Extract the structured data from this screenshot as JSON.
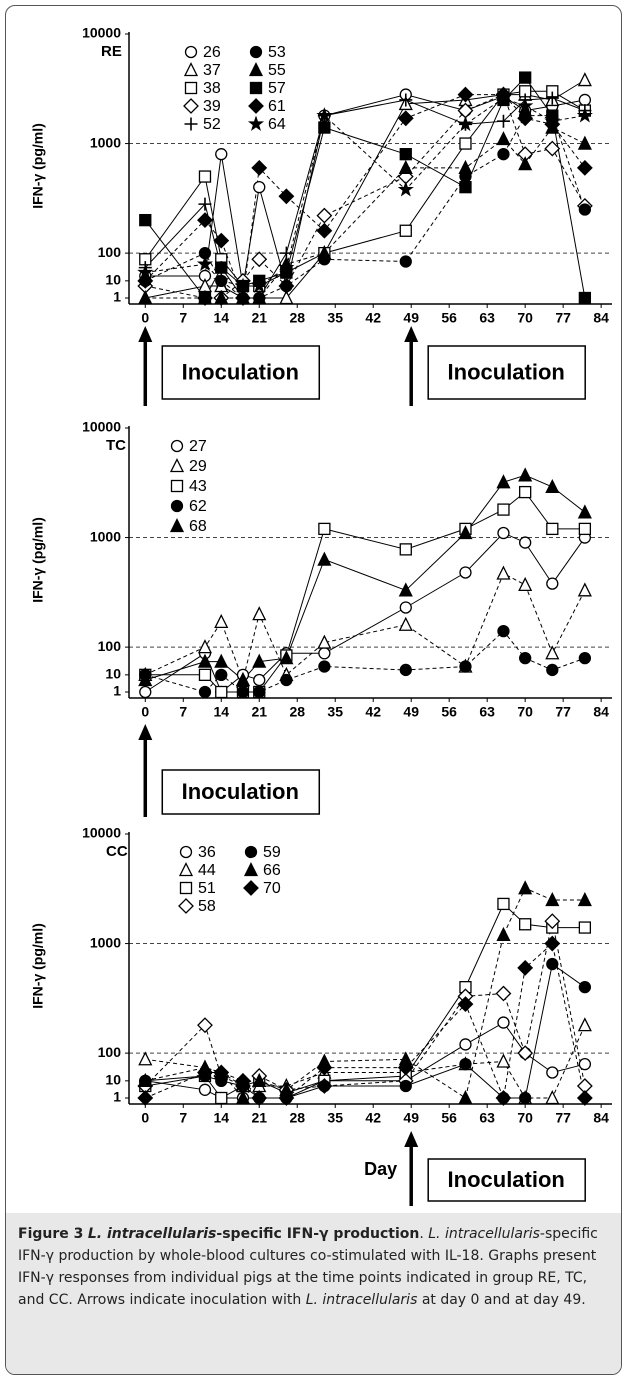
{
  "chart_data": [
    {
      "type": "line",
      "label": "RE",
      "ylabel": "IFN-γ (pg/ml)",
      "log_scale": true,
      "color": "#000000",
      "x": [
        0,
        11,
        14,
        18,
        21,
        26,
        33,
        48,
        59,
        66,
        70,
        75,
        81
      ],
      "xlim": [
        -3,
        86
      ],
      "xticks": [
        0,
        7,
        14,
        21,
        28,
        35,
        42,
        49,
        56,
        63,
        70,
        77,
        84
      ],
      "ylim": [
        1,
        10000
      ],
      "yticks": [
        1,
        10,
        100,
        1000,
        10000
      ],
      "hlines": [
        100,
        1000
      ],
      "legend_columns": 2,
      "series": [
        {
          "name": "26",
          "marker": "circle",
          "filled": false,
          "dash": false,
          "values": [
            15,
            15,
            800,
            5,
            400,
            5,
            1800,
            2800,
            2000,
            2700,
            2000,
            2200,
            2500
          ]
        },
        {
          "name": "37",
          "marker": "triangle",
          "filled": false,
          "dash": false,
          "values": [
            1,
            5,
            5,
            1,
            1,
            1,
            100,
            2300,
            2500,
            2800,
            2800,
            2500,
            3800
          ]
        },
        {
          "name": "38",
          "marker": "square",
          "filled": false,
          "dash": false,
          "values": [
            60,
            500,
            60,
            5,
            5,
            20,
            100,
            160,
            1000,
            2800,
            3000,
            3000,
            2000
          ]
        },
        {
          "name": "39",
          "marker": "diamond",
          "filled": false,
          "dash": true,
          "values": [
            5,
            1,
            1,
            10,
            60,
            5,
            220,
            500,
            2000,
            2800,
            800,
            900,
            270
          ]
        },
        {
          "name": "52",
          "marker": "plus",
          "filled": false,
          "dash": false,
          "values": [
            30,
            280,
            30,
            1,
            1,
            100,
            1800,
            2500,
            1500,
            1600,
            2500,
            2600,
            2000
          ]
        },
        {
          "name": "53",
          "marker": "circle",
          "filled": true,
          "dash": true,
          "values": [
            10,
            100,
            10,
            1,
            1,
            5,
            60,
            50,
            500,
            800,
            1800,
            1800,
            250
          ]
        },
        {
          "name": "55",
          "marker": "triangle",
          "filled": true,
          "dash": true,
          "values": [
            1,
            1,
            1,
            1,
            1,
            40,
            100,
            600,
            600,
            1100,
            650,
            1400,
            1000
          ]
        },
        {
          "name": "57",
          "marker": "square",
          "filled": true,
          "dash": false,
          "values": [
            200,
            1,
            30,
            5,
            10,
            20,
            1400,
            800,
            400,
            2500,
            4000,
            1800,
            1
          ]
        },
        {
          "name": "61",
          "marker": "diamond",
          "filled": true,
          "dash": true,
          "values": [
            10,
            200,
            130,
            1,
            600,
            330,
            160,
            1700,
            2800,
            2800,
            1700,
            1500,
            600
          ]
        },
        {
          "name": "64",
          "marker": "star",
          "filled": true,
          "dash": true,
          "values": [
            20,
            40,
            10,
            5,
            5,
            30,
            1800,
            380,
            1500,
            2600,
            2200,
            1600,
            1800
          ]
        }
      ],
      "annotations": [
        {
          "text": "Inoculation",
          "x": 0
        },
        {
          "text": "Inoculation",
          "x": 49
        }
      ]
    },
    {
      "type": "line",
      "label": "TC",
      "ylabel": "IFN-γ (pg/ml)",
      "log_scale": true,
      "color": "#000000",
      "x": [
        0,
        11,
        14,
        18,
        21,
        26,
        33,
        48,
        59,
        66,
        70,
        75,
        81
      ],
      "xlim": [
        -3,
        86
      ],
      "xticks": [
        0,
        7,
        14,
        21,
        28,
        35,
        42,
        49,
        56,
        63,
        70,
        77,
        84
      ],
      "ylim": [
        1,
        10000
      ],
      "yticks": [
        1,
        10,
        100,
        1000,
        10000
      ],
      "hlines": [
        100,
        1000
      ],
      "legend_columns": 1,
      "series": [
        {
          "name": "27",
          "marker": "circle",
          "filled": false,
          "dash": false,
          "values": [
            1,
            60,
            1,
            10,
            5,
            60,
            60,
            230,
            480,
            1100,
            900,
            380,
            1000
          ]
        },
        {
          "name": "29",
          "marker": "triangle",
          "filled": false,
          "dash": true,
          "values": [
            10,
            100,
            170,
            5,
            200,
            10,
            110,
            160,
            20,
            470,
            370,
            60,
            330
          ]
        },
        {
          "name": "43",
          "marker": "square",
          "filled": false,
          "dash": false,
          "values": [
            10,
            10,
            1,
            1,
            1,
            50,
            1200,
            780,
            1200,
            1800,
            2600,
            1200,
            1200
          ]
        },
        {
          "name": "62",
          "marker": "circle",
          "filled": true,
          "dash": true,
          "values": [
            10,
            1,
            10,
            1,
            1,
            5,
            20,
            15,
            20,
            140,
            40,
            15,
            40
          ]
        },
        {
          "name": "68",
          "marker": "triangle",
          "filled": true,
          "dash": false,
          "values": [
            5,
            30,
            30,
            5,
            30,
            40,
            630,
            330,
            1100,
            3200,
            3700,
            2900,
            1700
          ]
        }
      ],
      "annotations": [
        {
          "text": "Inoculation",
          "x": 0
        }
      ]
    },
    {
      "type": "line",
      "label": "CC",
      "ylabel": "IFN-γ (pg/ml)",
      "xlabel": "Day",
      "log_scale": true,
      "color": "#000000",
      "x": [
        0,
        11,
        14,
        18,
        21,
        26,
        33,
        48,
        59,
        66,
        70,
        75,
        81
      ],
      "xlim": [
        -3,
        86
      ],
      "xticks": [
        0,
        7,
        14,
        21,
        28,
        35,
        42,
        49,
        56,
        63,
        70,
        77,
        84
      ],
      "ylim": [
        1,
        10000
      ],
      "yticks": [
        1,
        10,
        100,
        1000,
        10000
      ],
      "hlines": [
        100,
        1000
      ],
      "legend_columns": 2,
      "series": [
        {
          "name": "36",
          "marker": "circle",
          "filled": false,
          "dash": false,
          "values": [
            10,
            3,
            1,
            1,
            1,
            1,
            10,
            10,
            120,
            190,
            100,
            20,
            40
          ]
        },
        {
          "name": "44",
          "marker": "triangle",
          "filled": false,
          "dash": true,
          "values": [
            60,
            30,
            20,
            5,
            5,
            5,
            20,
            20,
            40,
            50,
            1,
            1,
            180
          ]
        },
        {
          "name": "51",
          "marker": "square",
          "filled": false,
          "dash": false,
          "values": [
            5,
            15,
            1,
            5,
            10,
            2,
            10,
            15,
            400,
            2300,
            1500,
            1400,
            1400
          ]
        },
        {
          "name": "58",
          "marker": "diamond",
          "filled": false,
          "dash": true,
          "values": [
            5,
            180,
            15,
            5,
            15,
            3,
            5,
            10,
            330,
            350,
            100,
            1600,
            5
          ]
        },
        {
          "name": "59",
          "marker": "circle",
          "filled": true,
          "dash": false,
          "values": [
            10,
            15,
            10,
            5,
            1,
            1,
            5,
            5,
            40,
            1,
            1,
            650,
            400
          ]
        },
        {
          "name": "66",
          "marker": "triangle",
          "filled": true,
          "dash": true,
          "values": [
            10,
            30,
            20,
            1,
            10,
            3,
            50,
            60,
            1,
            1200,
            3200,
            2500,
            2500
          ]
        },
        {
          "name": "70",
          "marker": "diamond",
          "filled": true,
          "dash": true,
          "values": [
            1,
            20,
            20,
            10,
            1,
            1,
            30,
            30,
            280,
            1,
            600,
            1000,
            1
          ]
        }
      ],
      "annotations": [
        {
          "text": "Inoculation",
          "x": 49
        }
      ]
    }
  ],
  "caption": {
    "label": "Figure 3",
    "title": [
      {
        "text": "L. intracellularis",
        "italic": true
      },
      {
        "text": "-specific IFN-γ production",
        "italic": false
      }
    ],
    "body": [
      {
        "text": ". ",
        "italic": false
      },
      {
        "text": "L. intracellularis",
        "italic": true
      },
      {
        "text": "-specific IFN-γ production by whole-blood cultures co-stimulated with IL-18. Graphs present IFN-γ responses from individual pigs at the time points indicated in group RE, TC, and CC. Arrows indicate inoculation with ",
        "italic": false
      },
      {
        "text": "L. intracellularis",
        "italic": true
      },
      {
        "text": " at day 0 and at day 49.",
        "italic": false
      }
    ]
  }
}
